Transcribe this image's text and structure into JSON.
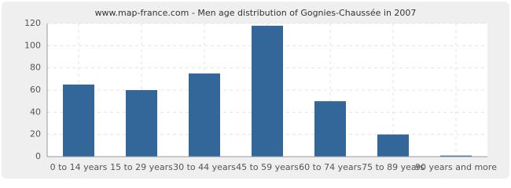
{
  "chart_data": {
    "type": "bar",
    "title": "www.map-france.com - Men age distribution of Gognies-Chaussée in 2007",
    "categories": [
      "0 to 14 years",
      "15 to 29 years",
      "30 to 44 years",
      "45 to 59 years",
      "60 to 74 years",
      "75 to 89 years",
      "90 years and more"
    ],
    "values": [
      65,
      60,
      75,
      118,
      50,
      20,
      1
    ],
    "color": "#336699",
    "ylim": [
      0,
      120
    ],
    "yticks": [
      0,
      20,
      40,
      60,
      80,
      100,
      120
    ],
    "grid": true
  }
}
